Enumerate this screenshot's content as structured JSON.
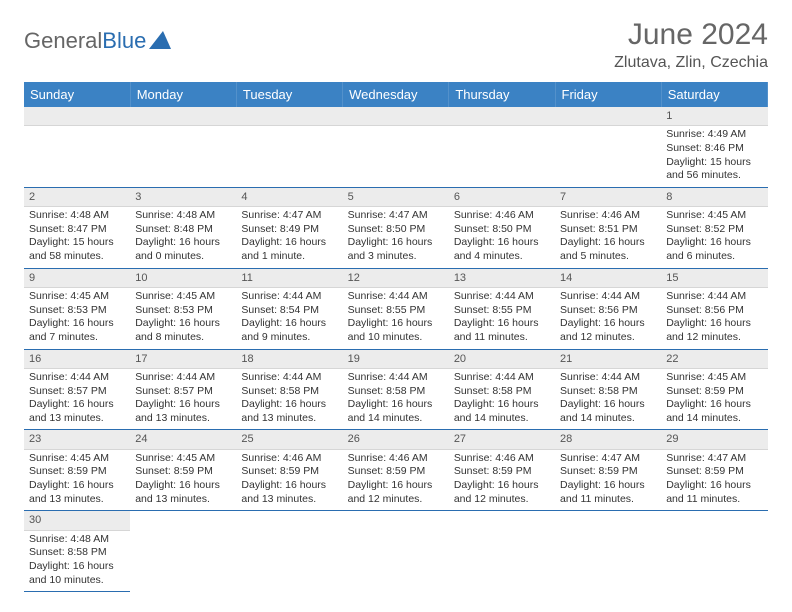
{
  "branding": {
    "first": "General",
    "second": "Blue"
  },
  "title": "June 2024",
  "location": "Zlutava, Zlin, Czechia",
  "colors": {
    "header_bg": "#3b82c4",
    "header_text": "#ffffff",
    "row_border": "#2a6db0",
    "daynum_bg": "#ececec",
    "brand_blue": "#2a6db0",
    "text": "#333333"
  },
  "layout": {
    "cols": 7,
    "day_font_size": 10.5
  },
  "dayHeaders": [
    "Sunday",
    "Monday",
    "Tuesday",
    "Wednesday",
    "Thursday",
    "Friday",
    "Saturday"
  ],
  "weeks": [
    [
      null,
      null,
      null,
      null,
      null,
      null,
      {
        "n": "1",
        "sunrise": "Sunrise: 4:49 AM",
        "sunset": "Sunset: 8:46 PM",
        "daylight": "Daylight: 15 hours and 56 minutes."
      }
    ],
    [
      {
        "n": "2",
        "sunrise": "Sunrise: 4:48 AM",
        "sunset": "Sunset: 8:47 PM",
        "daylight": "Daylight: 15 hours and 58 minutes."
      },
      {
        "n": "3",
        "sunrise": "Sunrise: 4:48 AM",
        "sunset": "Sunset: 8:48 PM",
        "daylight": "Daylight: 16 hours and 0 minutes."
      },
      {
        "n": "4",
        "sunrise": "Sunrise: 4:47 AM",
        "sunset": "Sunset: 8:49 PM",
        "daylight": "Daylight: 16 hours and 1 minute."
      },
      {
        "n": "5",
        "sunrise": "Sunrise: 4:47 AM",
        "sunset": "Sunset: 8:50 PM",
        "daylight": "Daylight: 16 hours and 3 minutes."
      },
      {
        "n": "6",
        "sunrise": "Sunrise: 4:46 AM",
        "sunset": "Sunset: 8:50 PM",
        "daylight": "Daylight: 16 hours and 4 minutes."
      },
      {
        "n": "7",
        "sunrise": "Sunrise: 4:46 AM",
        "sunset": "Sunset: 8:51 PM",
        "daylight": "Daylight: 16 hours and 5 minutes."
      },
      {
        "n": "8",
        "sunrise": "Sunrise: 4:45 AM",
        "sunset": "Sunset: 8:52 PM",
        "daylight": "Daylight: 16 hours and 6 minutes."
      }
    ],
    [
      {
        "n": "9",
        "sunrise": "Sunrise: 4:45 AM",
        "sunset": "Sunset: 8:53 PM",
        "daylight": "Daylight: 16 hours and 7 minutes."
      },
      {
        "n": "10",
        "sunrise": "Sunrise: 4:45 AM",
        "sunset": "Sunset: 8:53 PM",
        "daylight": "Daylight: 16 hours and 8 minutes."
      },
      {
        "n": "11",
        "sunrise": "Sunrise: 4:44 AM",
        "sunset": "Sunset: 8:54 PM",
        "daylight": "Daylight: 16 hours and 9 minutes."
      },
      {
        "n": "12",
        "sunrise": "Sunrise: 4:44 AM",
        "sunset": "Sunset: 8:55 PM",
        "daylight": "Daylight: 16 hours and 10 minutes."
      },
      {
        "n": "13",
        "sunrise": "Sunrise: 4:44 AM",
        "sunset": "Sunset: 8:55 PM",
        "daylight": "Daylight: 16 hours and 11 minutes."
      },
      {
        "n": "14",
        "sunrise": "Sunrise: 4:44 AM",
        "sunset": "Sunset: 8:56 PM",
        "daylight": "Daylight: 16 hours and 12 minutes."
      },
      {
        "n": "15",
        "sunrise": "Sunrise: 4:44 AM",
        "sunset": "Sunset: 8:56 PM",
        "daylight": "Daylight: 16 hours and 12 minutes."
      }
    ],
    [
      {
        "n": "16",
        "sunrise": "Sunrise: 4:44 AM",
        "sunset": "Sunset: 8:57 PM",
        "daylight": "Daylight: 16 hours and 13 minutes."
      },
      {
        "n": "17",
        "sunrise": "Sunrise: 4:44 AM",
        "sunset": "Sunset: 8:57 PM",
        "daylight": "Daylight: 16 hours and 13 minutes."
      },
      {
        "n": "18",
        "sunrise": "Sunrise: 4:44 AM",
        "sunset": "Sunset: 8:58 PM",
        "daylight": "Daylight: 16 hours and 13 minutes."
      },
      {
        "n": "19",
        "sunrise": "Sunrise: 4:44 AM",
        "sunset": "Sunset: 8:58 PM",
        "daylight": "Daylight: 16 hours and 14 minutes."
      },
      {
        "n": "20",
        "sunrise": "Sunrise: 4:44 AM",
        "sunset": "Sunset: 8:58 PM",
        "daylight": "Daylight: 16 hours and 14 minutes."
      },
      {
        "n": "21",
        "sunrise": "Sunrise: 4:44 AM",
        "sunset": "Sunset: 8:58 PM",
        "daylight": "Daylight: 16 hours and 14 minutes."
      },
      {
        "n": "22",
        "sunrise": "Sunrise: 4:45 AM",
        "sunset": "Sunset: 8:59 PM",
        "daylight": "Daylight: 16 hours and 14 minutes."
      }
    ],
    [
      {
        "n": "23",
        "sunrise": "Sunrise: 4:45 AM",
        "sunset": "Sunset: 8:59 PM",
        "daylight": "Daylight: 16 hours and 13 minutes."
      },
      {
        "n": "24",
        "sunrise": "Sunrise: 4:45 AM",
        "sunset": "Sunset: 8:59 PM",
        "daylight": "Daylight: 16 hours and 13 minutes."
      },
      {
        "n": "25",
        "sunrise": "Sunrise: 4:46 AM",
        "sunset": "Sunset: 8:59 PM",
        "daylight": "Daylight: 16 hours and 13 minutes."
      },
      {
        "n": "26",
        "sunrise": "Sunrise: 4:46 AM",
        "sunset": "Sunset: 8:59 PM",
        "daylight": "Daylight: 16 hours and 12 minutes."
      },
      {
        "n": "27",
        "sunrise": "Sunrise: 4:46 AM",
        "sunset": "Sunset: 8:59 PM",
        "daylight": "Daylight: 16 hours and 12 minutes."
      },
      {
        "n": "28",
        "sunrise": "Sunrise: 4:47 AM",
        "sunset": "Sunset: 8:59 PM",
        "daylight": "Daylight: 16 hours and 11 minutes."
      },
      {
        "n": "29",
        "sunrise": "Sunrise: 4:47 AM",
        "sunset": "Sunset: 8:59 PM",
        "daylight": "Daylight: 16 hours and 11 minutes."
      }
    ],
    [
      {
        "n": "30",
        "sunrise": "Sunrise: 4:48 AM",
        "sunset": "Sunset: 8:58 PM",
        "daylight": "Daylight: 16 hours and 10 minutes."
      },
      null,
      null,
      null,
      null,
      null,
      null
    ]
  ]
}
